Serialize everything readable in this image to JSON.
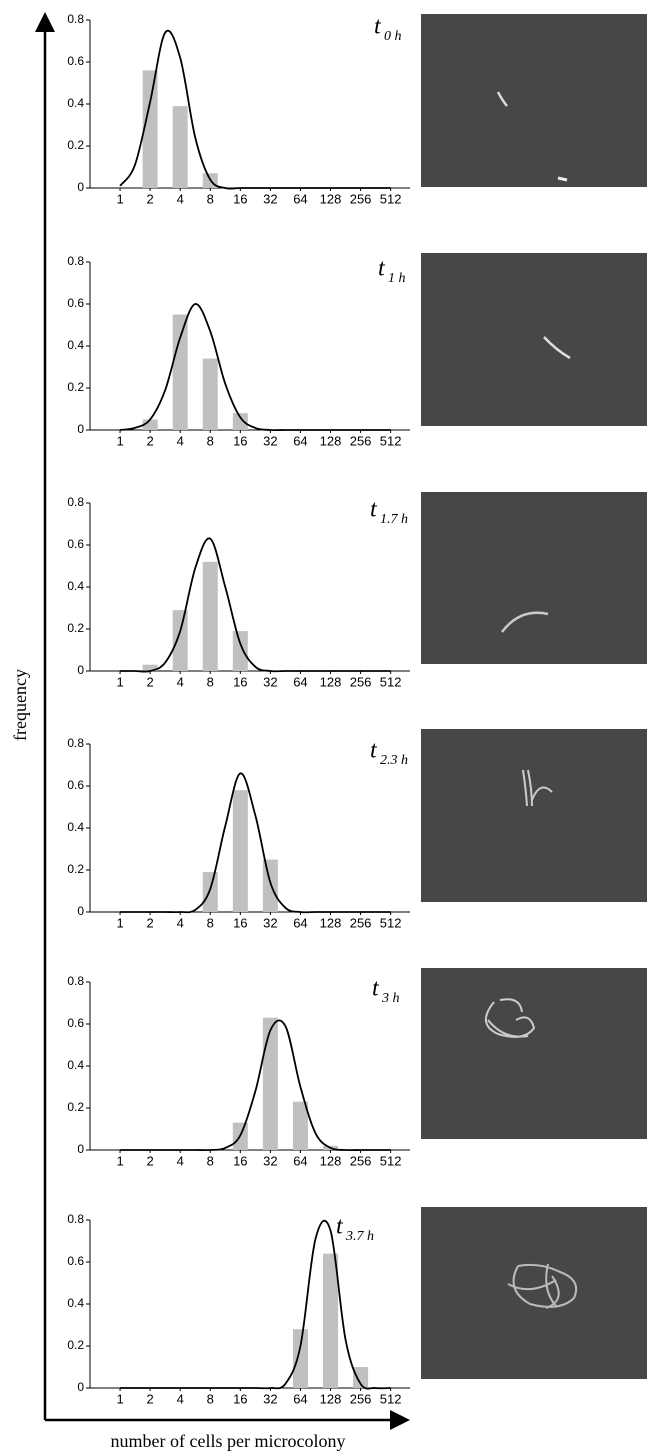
{
  "figure": {
    "y_label": "frequency",
    "x_label": "number of cells per microcolony"
  },
  "chart_data": [
    {
      "type": "bar",
      "title": "t",
      "subtitle": "0 h",
      "xscale": "log2",
      "categories": [
        1,
        2,
        4,
        8,
        16,
        32,
        64,
        128,
        256,
        512
      ],
      "values": [
        0,
        0.56,
        0.39,
        0.07,
        0,
        0,
        0,
        0,
        0,
        0
      ],
      "color": "#c0c0c0",
      "curve": {
        "x": [
          1,
          1.41,
          2,
          2.83,
          4,
          5.66,
          8,
          11.31,
          16,
          22.63,
          32,
          45.25,
          64,
          90.51,
          128,
          181.02,
          256,
          362.04,
          512
        ],
        "values": [
          0.01,
          0.11,
          0.41,
          0.74,
          0.62,
          0.24,
          0.04,
          0,
          0,
          0,
          0,
          0,
          0,
          0,
          0,
          0,
          0,
          0,
          0
        ],
        "color": "#000000"
      },
      "xlim": [
        0.5,
        800
      ],
      "ylim": [
        0,
        0.8
      ],
      "yticks": [
        0,
        0.2,
        0.4,
        0.6,
        0.8
      ]
    },
    {
      "type": "bar",
      "title": "t",
      "subtitle": "1 h",
      "xscale": "log2",
      "categories": [
        1,
        2,
        4,
        8,
        16,
        32,
        64,
        128,
        256,
        512
      ],
      "values": [
        0,
        0.05,
        0.55,
        0.34,
        0.08,
        0,
        0,
        0,
        0,
        0
      ],
      "color": "#c0c0c0",
      "curve": {
        "x": [
          1,
          1.41,
          2,
          2.83,
          4,
          5.66,
          8,
          11.31,
          16,
          22.63,
          32,
          45.25,
          64,
          90.51,
          128,
          181.02,
          256,
          362.04,
          512
        ],
        "values": [
          0,
          0.01,
          0.05,
          0.19,
          0.44,
          0.6,
          0.47,
          0.22,
          0.06,
          0.01,
          0,
          0,
          0,
          0,
          0,
          0,
          0,
          0,
          0
        ],
        "color": "#000000"
      },
      "xlim": [
        0.5,
        800
      ],
      "ylim": [
        0,
        0.8
      ],
      "yticks": [
        0,
        0.2,
        0.4,
        0.6,
        0.8
      ]
    },
    {
      "type": "bar",
      "title": "t",
      "subtitle": "1.7 h",
      "xscale": "log2",
      "categories": [
        1,
        2,
        4,
        8,
        16,
        32,
        64,
        128,
        256,
        512
      ],
      "values": [
        0,
        0.03,
        0.29,
        0.52,
        0.19,
        0,
        0,
        0,
        0,
        0
      ],
      "color": "#c0c0c0",
      "curve": {
        "x": [
          1,
          1.41,
          2,
          2.83,
          4,
          5.66,
          8,
          11.31,
          16,
          22.63,
          32,
          45.25,
          64,
          90.51,
          128,
          181.02,
          256,
          362.04,
          512
        ],
        "values": [
          0,
          0,
          0,
          0.04,
          0.19,
          0.49,
          0.63,
          0.4,
          0.13,
          0.02,
          0,
          0,
          0,
          0,
          0,
          0,
          0,
          0,
          0
        ],
        "color": "#000000"
      },
      "xlim": [
        0.5,
        800
      ],
      "ylim": [
        0,
        0.8
      ],
      "yticks": [
        0,
        0.2,
        0.4,
        0.6,
        0.8
      ]
    },
    {
      "type": "bar",
      "title": "t",
      "subtitle": "2.3 h",
      "xscale": "log2",
      "categories": [
        1,
        2,
        4,
        8,
        16,
        32,
        64,
        128,
        256,
        512
      ],
      "values": [
        0,
        0,
        0,
        0.19,
        0.58,
        0.25,
        0,
        0,
        0,
        0
      ],
      "color": "#c0c0c0",
      "curve": {
        "x": [
          1,
          1.41,
          2,
          2.83,
          4,
          5.66,
          8,
          11.31,
          16,
          22.63,
          32,
          45.25,
          64,
          90.51,
          128,
          181.02,
          256,
          362.04,
          512
        ],
        "values": [
          0,
          0,
          0,
          0,
          0,
          0.01,
          0.11,
          0.41,
          0.66,
          0.46,
          0.14,
          0.02,
          0,
          0,
          0,
          0,
          0,
          0,
          0
        ],
        "color": "#000000"
      },
      "xlim": [
        0.5,
        800
      ],
      "ylim": [
        0,
        0.8
      ],
      "yticks": [
        0,
        0.2,
        0.4,
        0.6,
        0.8
      ]
    },
    {
      "type": "bar",
      "title": "t",
      "subtitle": "3 h",
      "xscale": "log2",
      "categories": [
        1,
        2,
        4,
        8,
        16,
        32,
        64,
        128,
        256,
        512
      ],
      "values": [
        0,
        0,
        0,
        0,
        0.13,
        0.63,
        0.23,
        0.02,
        0,
        0
      ],
      "color": "#c0c0c0",
      "curve": {
        "x": [
          1,
          1.41,
          2,
          2.83,
          4,
          5.66,
          8,
          11.31,
          16,
          22.63,
          32,
          45.25,
          64,
          90.51,
          128,
          181.02,
          256,
          362.04,
          512
        ],
        "values": [
          0,
          0,
          0,
          0,
          0,
          0,
          0,
          0.01,
          0.07,
          0.28,
          0.57,
          0.59,
          0.3,
          0.08,
          0.01,
          0,
          0,
          0,
          0
        ],
        "color": "#000000"
      },
      "xlim": [
        0.5,
        800
      ],
      "ylim": [
        0,
        0.8
      ],
      "yticks": [
        0,
        0.2,
        0.4,
        0.6,
        0.8
      ]
    },
    {
      "type": "bar",
      "title": "t",
      "subtitle": "3.7 h",
      "xscale": "log2",
      "categories": [
        1,
        2,
        4,
        8,
        16,
        32,
        64,
        128,
        256,
        512
      ],
      "values": [
        0,
        0,
        0,
        0,
        0,
        0,
        0.28,
        0.64,
        0.1,
        0
      ],
      "color": "#c0c0c0",
      "curve": {
        "x": [
          1,
          1.41,
          2,
          2.83,
          4,
          5.66,
          8,
          11.31,
          16,
          22.63,
          32,
          45.25,
          64,
          90.51,
          128,
          181.02,
          256,
          362.04,
          512
        ],
        "values": [
          0,
          0,
          0,
          0,
          0,
          0,
          0,
          0,
          0,
          0,
          0,
          0.02,
          0.2,
          0.71,
          0.75,
          0.23,
          0.02,
          0,
          0
        ],
        "color": "#000000"
      },
      "xlim": [
        0.5,
        800
      ],
      "ylim": [
        0,
        0.8
      ],
      "yticks": [
        0,
        0.2,
        0.4,
        0.6,
        0.8
      ]
    }
  ]
}
